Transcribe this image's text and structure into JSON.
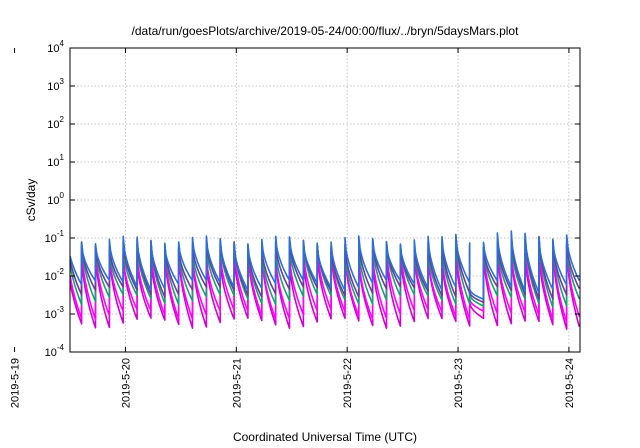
{
  "chart_data": {
    "type": "line",
    "title": "/data/run/goesPlots/archive/2019-05-24/00:00/flux/../bryn/5daysMars.plot",
    "xlabel": "Coordinated Universal Time (UTC)",
    "ylabel": "cSv/day",
    "y_scale": "log",
    "ylim_exponents": [
      -4,
      4
    ],
    "y_tick_base": "10",
    "y_tick_exponents": [
      "-4",
      "-3",
      "-2",
      "-1",
      "0",
      "1",
      "2",
      "3",
      "4"
    ],
    "xlim_days": [
      2019.5,
      2024.1
    ],
    "x_tick_labels": [
      "2019-5-19",
      "2019-5-20",
      "2019-5-21",
      "2019-5-22",
      "2019-5-23",
      "2019-5-24"
    ],
    "grid": true,
    "legend": "none",
    "sawtooth_period_hours": 3,
    "series": [
      {
        "color": "#d400d4",
        "peak": 0.04,
        "trough": 0.0006
      },
      {
        "color": "#ff00ff",
        "peak": 0.05,
        "trough": 0.001
      },
      {
        "color": "#1b9e77",
        "peak": 0.065,
        "trough": 0.0025
      },
      {
        "color": "#6a3d9a",
        "peak": 0.075,
        "trough": 0.004
      },
      {
        "color": "#2a6fdb",
        "peak": 0.09,
        "trough": 0.006
      }
    ],
    "event": {
      "start_day": 2023.0,
      "drop_start_day": 2023.05,
      "min_day": 2023.08,
      "recover_day": 2023.2,
      "min_value": 0.0007,
      "recover_peak": 0.13
    }
  }
}
